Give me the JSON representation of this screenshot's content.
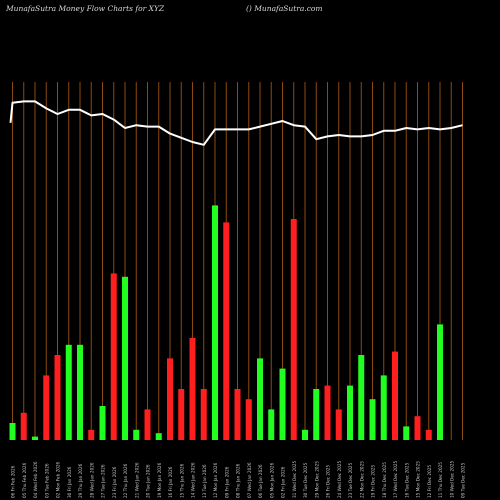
{
  "header": {
    "left": "MunafaSutra  Money Flow  Charts for XYZ",
    "right": "() MunafaSutra.com"
  },
  "colors": {
    "background": "#000000",
    "grid": "#8b4a0f",
    "up": "#21ff21",
    "down": "#ff1f1f",
    "line": "#ffffff",
    "label": "#c8c8c8"
  },
  "chart_data": {
    "type": "bar",
    "title": "Money Flow Charts for XYZ",
    "grid": "vertical",
    "ylim": [
      0,
      100
    ],
    "price_ylim": [
      0,
      100
    ],
    "categories": [
      "06 Fri Feb 2026",
      "05 Thu Feb 2026",
      "04 Wed Feb 2026",
      "03 Tue Feb 2026",
      "02 Mon Feb 2026",
      "30 Fri Jan 2026",
      "29 Thu Jan 2026",
      "28 Wed Jan 2026",
      "27 Tue Jan 2026",
      "23 Fri Jan 2026",
      "22 Thu Jan 2026",
      "21 Wed Jan 2026",
      "20 Tue Jan 2026",
      "19 Mon Jan 2026",
      "16 Fri Jan 2026",
      "15 Thu Jan 2026",
      "14 Wed Jan 2026",
      "13 Tue Jan 2026",
      "12 Mon Jan 2026",
      "09 Fri Jan 2026",
      "08 Thu Jan 2026",
      "07 Wed Jan 2026",
      "06 Tue Jan 2026",
      "05 Mon Jan 2026",
      "02 Fri Jan 2026",
      "31 Wed Dec 2025",
      "30 Tue Dec 2025",
      "29 Mon Dec 2025",
      "26 Fri Dec 2025",
      "24 Wed Dec 2025",
      "23 Tue Dec 2025",
      "22 Mon Dec 2025",
      "19 Fri Dec 2025",
      "18 Thu Dec 2025",
      "17 Wed Dec 2025",
      "16 Tue Dec 2025",
      "15 Mon Dec 2025",
      "12 Fri Dec 2025",
      "11 Thu Dec 2025",
      "10 Wed Dec 2025",
      "09 Tue Dec 2025"
    ],
    "series": [
      {
        "values": [
          5,
          8,
          1,
          19,
          25,
          28,
          28,
          3,
          10,
          49,
          48,
          3,
          9,
          2,
          24,
          15,
          30,
          15,
          69,
          64,
          15,
          12,
          24,
          9,
          21,
          65,
          3,
          15,
          16,
          9,
          16,
          25,
          12,
          19,
          26,
          4,
          7,
          3,
          34,
          0,
          0
        ],
        "directions": [
          "up",
          "down",
          "up",
          "down",
          "down",
          "up",
          "up",
          "down",
          "up",
          "down",
          "up",
          "up",
          "down",
          "up",
          "down",
          "down",
          "down",
          "down",
          "up",
          "down",
          "down",
          "down",
          "up",
          "up",
          "up",
          "down",
          "up",
          "up",
          "down",
          "down",
          "up",
          "up",
          "up",
          "up",
          "down",
          "up",
          "down",
          "down",
          "up",
          "up",
          "up"
        ]
      },
      {
        "name": "price",
        "values": [
          98,
          99,
          99,
          94,
          90,
          93,
          93,
          89,
          90,
          86,
          80,
          82,
          81,
          81,
          76,
          73,
          70,
          68,
          79,
          79,
          79,
          79,
          81,
          83,
          85,
          82,
          81,
          72,
          74,
          75,
          74,
          74,
          75,
          78,
          78,
          80,
          79,
          80,
          79,
          80,
          82
        ]
      }
    ]
  }
}
